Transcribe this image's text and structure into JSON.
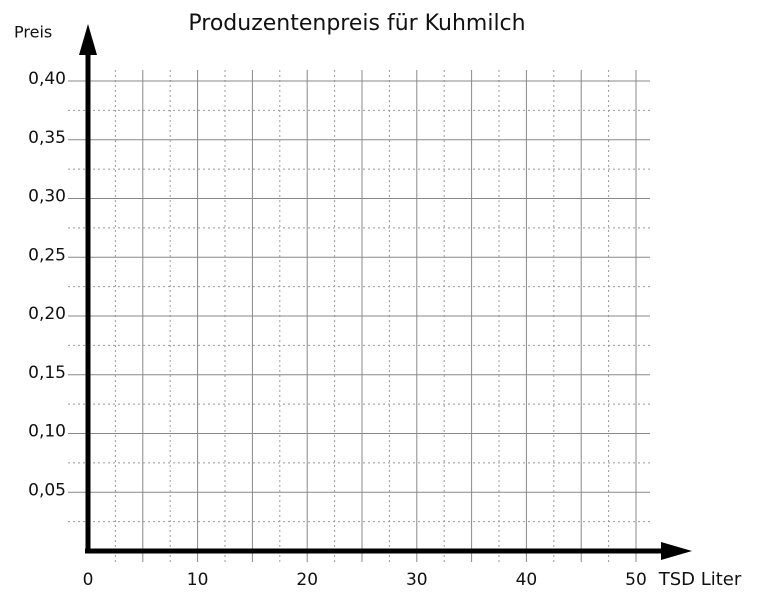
{
  "chart_data": {
    "type": "line",
    "title": "Produzentenpreis für Kuhmilch",
    "y_label": "Preis",
    "x_label": "TSD Liter",
    "series": [],
    "xlim": [
      0,
      50
    ],
    "xticks": [
      0,
      10,
      20,
      30,
      40,
      50
    ],
    "ylim": [
      0,
      0.4
    ],
    "yticks": [
      {
        "value": 0.05,
        "label": "0,05"
      },
      {
        "value": 0.1,
        "label": "0,10"
      },
      {
        "value": 0.15,
        "label": "0,15"
      },
      {
        "value": 0.2,
        "label": "0,20"
      },
      {
        "value": 0.25,
        "label": "0,25"
      },
      {
        "value": 0.3,
        "label": "0,30"
      },
      {
        "value": 0.35,
        "label": "0,35"
      },
      {
        "value": 0.4,
        "label": "0,40"
      }
    ],
    "x_major_grid": [
      5,
      10,
      15,
      20,
      25,
      30,
      35,
      40,
      45,
      50
    ],
    "x_minor_grid": [
      2.5,
      7.5,
      12.5,
      17.5,
      22.5,
      27.5,
      32.5,
      37.5,
      42.5,
      47.5
    ],
    "y_major_grid": [
      0.05,
      0.1,
      0.15,
      0.2,
      0.25,
      0.3,
      0.35,
      0.4
    ],
    "y_minor_grid": [
      0.025,
      0.075,
      0.125,
      0.175,
      0.225,
      0.275,
      0.325,
      0.375
    ],
    "grid": true
  }
}
